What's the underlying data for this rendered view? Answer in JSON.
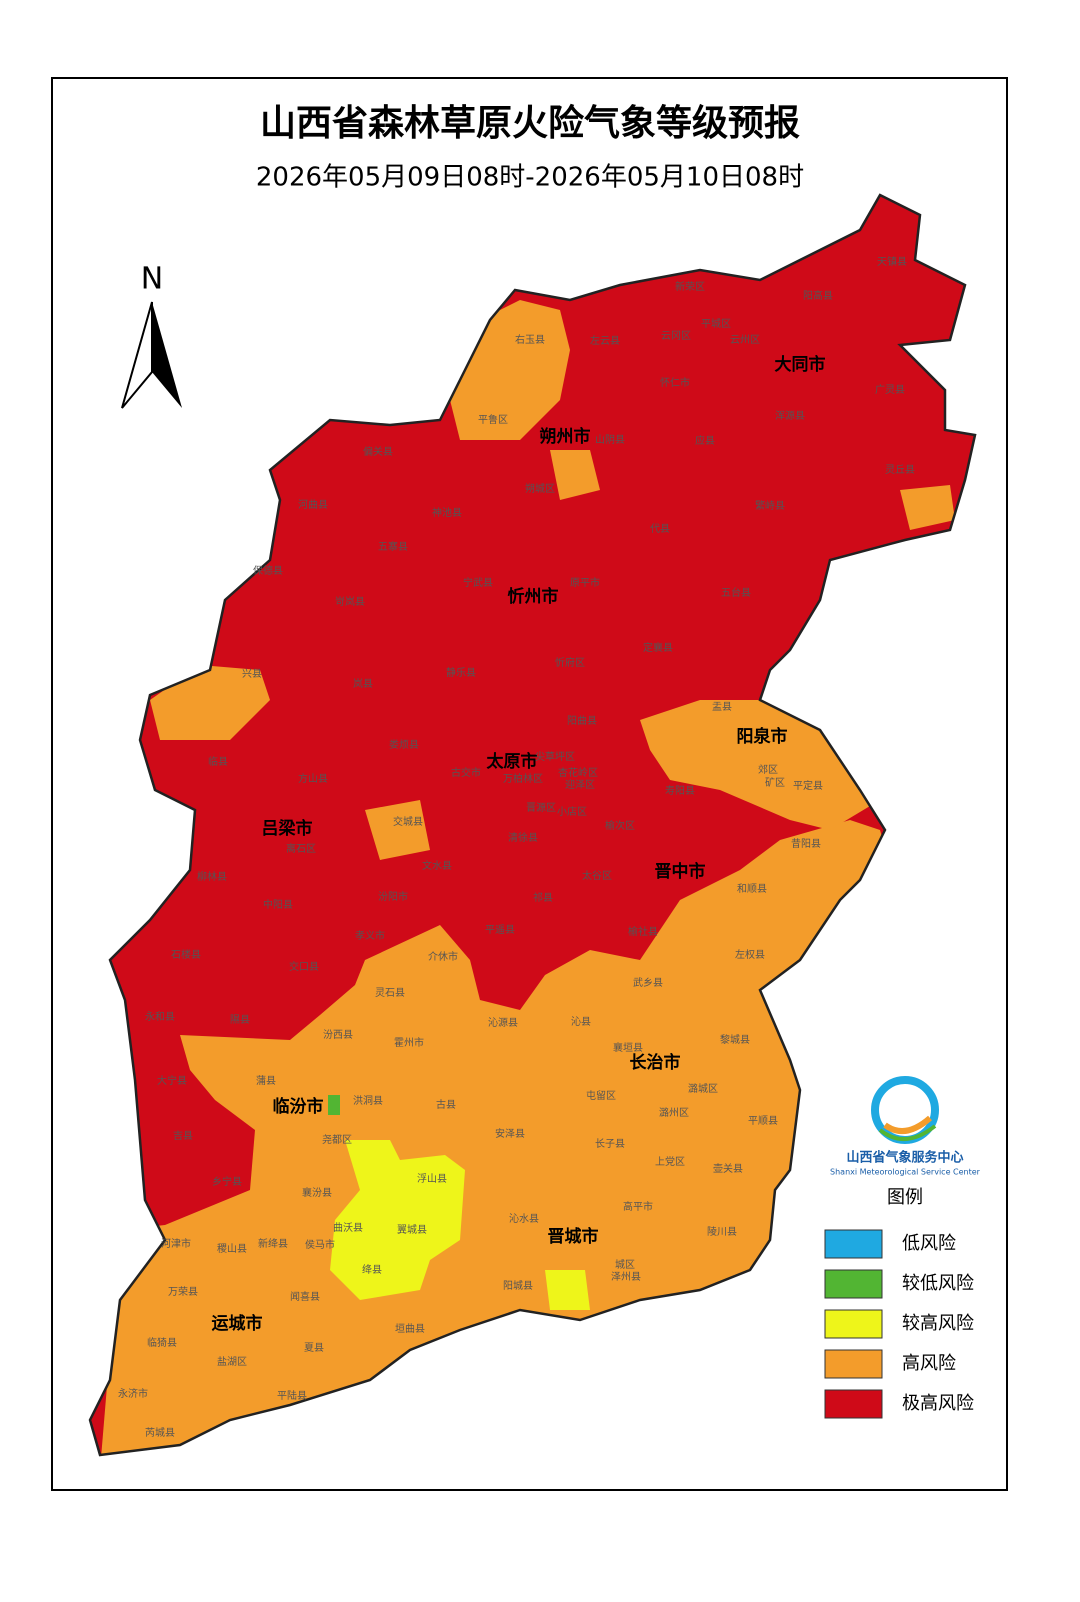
{
  "header": {
    "title": "山西省森林草原火险气象等级预报",
    "subtitle": "2026年05月09日08时-2026年05月10日08时"
  },
  "north": "N",
  "cities": [
    "大同市",
    "朔州市",
    "忻州市",
    "阳泉市",
    "太原市",
    "吕梁市",
    "晋中市",
    "长治市",
    "临汾市",
    "晋城市",
    "运城市"
  ],
  "counties": [
    "天镇县",
    "新荣区",
    "阳高县",
    "右玉县",
    "左云县",
    "云冈区",
    "平城区",
    "云州区",
    "广灵县",
    "怀仁市",
    "平鲁区",
    "山阴县",
    "应县",
    "浑源县",
    "偏关县",
    "灵丘县",
    "朔城区",
    "河曲县",
    "神池县",
    "繁峙县",
    "代县",
    "五寨县",
    "保德县",
    "宁武县",
    "原平市",
    "五台县",
    "岢岚县",
    "静乐县",
    "忻府区",
    "定襄县",
    "兴县",
    "岚县",
    "盂县",
    "阳曲县",
    "娄烦县",
    "尖草坪区",
    "古交市",
    "万柏林区",
    "杏花岭区",
    "迎泽区",
    "郊区",
    "矿区",
    "平定县",
    "临县",
    "方山县",
    "寿阳县",
    "晋源区",
    "小店区",
    "榆次区",
    "交城县",
    "离石区",
    "清徐县",
    "昔阳县",
    "文水县",
    "太谷区",
    "和顺县",
    "柳林县",
    "中阳县",
    "汾阳市",
    "祁县",
    "平遥县",
    "榆社县",
    "孝义市",
    "石楼县",
    "介休市",
    "左权县",
    "交口县",
    "武乡县",
    "灵石县",
    "永和县",
    "隰县",
    "沁源县",
    "沁县",
    "汾西县",
    "霍州市",
    "襄垣县",
    "黎城县",
    "大宁县",
    "蒲县",
    "洪洞县",
    "古县",
    "屯留区",
    "潞城区",
    "安泽县",
    "潞州区",
    "吉县",
    "尧都区",
    "平顺县",
    "长子县",
    "上党区",
    "壶关县",
    "浮山县",
    "乡宁县",
    "襄汾县",
    "高平市",
    "曲沃县",
    "翼城县",
    "沁水县",
    "陵川县",
    "河津市",
    "稷山县",
    "新绛县",
    "侯马市",
    "城区",
    "泽州县",
    "绛县",
    "阳城县",
    "万荣县",
    "闻喜县",
    "垣曲县",
    "临猗县",
    "盐湖区",
    "夏县",
    "永济市",
    "平陆县",
    "芮城县"
  ],
  "logo": {
    "name": "山西省气象服务中心",
    "english": "Shanxi Meteorological Service Center"
  },
  "legend": {
    "title": "图例",
    "items": [
      {
        "label": "低风险",
        "color": "#1fa9e1"
      },
      {
        "label": "较低风险",
        "color": "#52b533"
      },
      {
        "label": "较高风险",
        "color": "#eef51a"
      },
      {
        "label": "高风险",
        "color": "#f39c2b"
      },
      {
        "label": "极高风险",
        "color": "#cf0a18"
      }
    ]
  }
}
